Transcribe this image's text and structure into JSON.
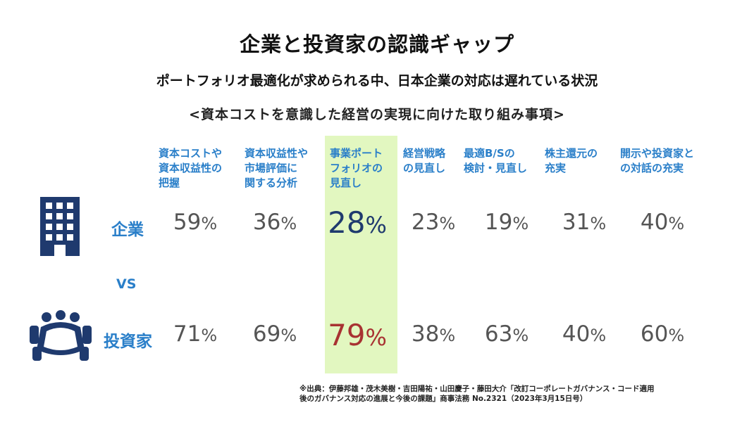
{
  "title": "企業と投資家の認識ギャップ",
  "subtitle": "ポートフォリオ最適化が求められる中、日本企業の対応は遅れている状況",
  "section_heading": "<資本コストを意識した経営の実現に向けた取り組み事項>",
  "vs_label": "VS",
  "footnote_line1": "※出典：伊藤邦雄・茂木美樹・吉田陽祐・山田慶子・藤田大介「改訂コーポレートガバナンス・コード適用",
  "footnote_line2": "後のガバナンス対応の進展と今後の課題」商事法務 No.2321（2023年3月15日号）",
  "icons": {
    "company": "office-building-icon",
    "investor": "meeting-table-icon"
  },
  "colors": {
    "label_blue": "#2a7fc9",
    "icon_navy": "#1f3a6e",
    "highlight_bg": "#e2f7c0",
    "value_gray": "#555555",
    "company_highlight": "#1f3a6e",
    "investor_highlight": "#a83232"
  },
  "chart_data": {
    "type": "table",
    "highlight_index": 2,
    "unit": "%",
    "categories": [
      [
        "資本コストや",
        "資本収益性の",
        "把握"
      ],
      [
        "資本収益性や",
        "市場評価に",
        "関する分析"
      ],
      [
        "事業ポート",
        "フォリオの",
        "見直し"
      ],
      [
        "経営戦略",
        "の見直し"
      ],
      [
        "最適B/Sの",
        "検討・見直し"
      ],
      [
        "株主還元の",
        "充実"
      ],
      [
        "開示や投資家と",
        "の対話の充実"
      ]
    ],
    "series": [
      {
        "name": "企業",
        "values": [
          59,
          36,
          28,
          23,
          19,
          31,
          40
        ]
      },
      {
        "name": "投資家",
        "values": [
          71,
          69,
          79,
          38,
          63,
          40,
          60
        ]
      }
    ]
  }
}
